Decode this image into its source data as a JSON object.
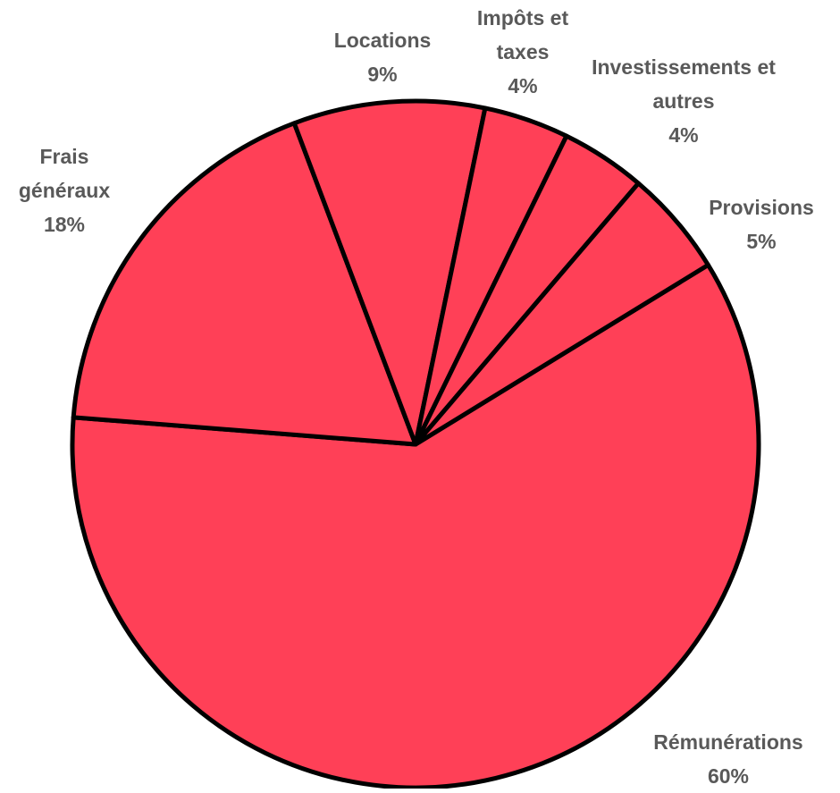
{
  "chart_data": {
    "type": "pie",
    "categories": [
      "Rémunérations",
      "Frais généraux",
      "Locations",
      "Impôts et taxes",
      "Investissements et autres",
      "Provisions"
    ],
    "values": [
      60,
      18,
      9,
      4,
      4,
      5
    ],
    "value_labels": [
      "60%",
      "18%",
      "9%",
      "4%",
      "4%",
      "5%"
    ],
    "color": "#ff4057"
  }
}
